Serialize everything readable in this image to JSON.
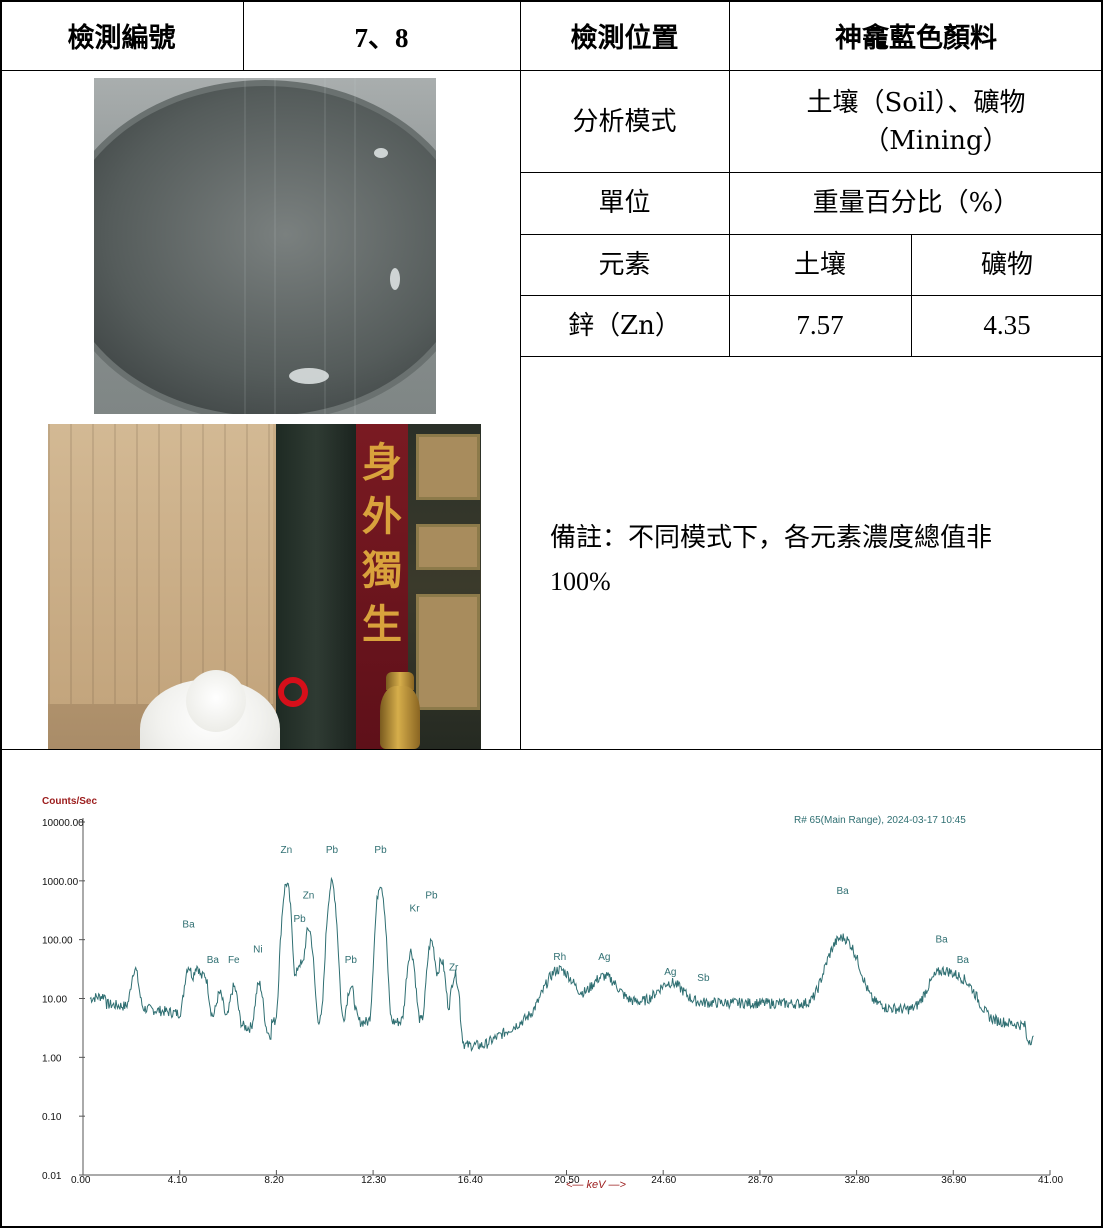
{
  "table": {
    "id_label": "檢測編號",
    "id_value": "7、8",
    "location_label": "檢測位置",
    "location_value": "神龕藍色顏料",
    "mode_label": "分析模式",
    "mode_value_line1": "土壤（Soil）、礦物",
    "mode_value_line2": "（Mining）",
    "unit_label": "單位",
    "unit_value": "重量百分比（%）",
    "element_label": "元素",
    "soil_label": "土壤",
    "mining_label": "礦物",
    "row_element": "鋅（Zn）",
    "row_soil": "7.57",
    "row_mining": "4.35",
    "note_line1": "備註：不同模式下，各元素濃度總值非",
    "note_line2": "100%"
  },
  "photo": {
    "banner_chars": [
      "身",
      "外",
      "獨",
      "生"
    ],
    "marker_color": "#d60f1a"
  },
  "chart_data": {
    "type": "line",
    "ylabel": "Counts/Sec",
    "xlabel": "<— keV —>",
    "annotation": "R# 65(Main Range), 2024-03-17 10:45",
    "y_scale": "log",
    "ylim": [
      0.01,
      10000
    ],
    "xlim": [
      0,
      41
    ],
    "y_ticks": [
      "10000.00",
      "1000.00",
      "100.00",
      "10.00",
      "1.00",
      "0.10",
      "0.01"
    ],
    "x_ticks": [
      "0.00",
      "4.10",
      "8.20",
      "12.30",
      "16.40",
      "20.50",
      "24.60",
      "28.70",
      "32.80",
      "36.90",
      "41.00"
    ],
    "line_color": "#2f6f72",
    "label_color_axis": "#9b1b1b",
    "label_color_peaks": "#2f6f72",
    "peak_labels": [
      {
        "text": "Ba",
        "keV": 4.47,
        "counts": 160
      },
      {
        "text": "Ba",
        "keV": 5.5,
        "counts": 40
      },
      {
        "text": "Fe",
        "keV": 6.4,
        "counts": 40
      },
      {
        "text": "Ni",
        "keV": 7.47,
        "counts": 60
      },
      {
        "text": "Zn",
        "keV": 8.63,
        "counts": 3000
      },
      {
        "text": "Pb",
        "keV": 10.55,
        "counts": 3000
      },
      {
        "text": "Pb",
        "keV": 12.61,
        "counts": 3000
      },
      {
        "text": "Zn",
        "keV": 9.57,
        "counts": 500
      },
      {
        "text": "Pb",
        "keV": 9.18,
        "counts": 200
      },
      {
        "text": "Pb",
        "keV": 11.35,
        "counts": 40
      },
      {
        "text": "Kr",
        "keV": 14.1,
        "counts": 300
      },
      {
        "text": "Pb",
        "keV": 14.77,
        "counts": 500
      },
      {
        "text": "Zr",
        "keV": 15.77,
        "counts": 30
      },
      {
        "text": "Rh",
        "keV": 20.2,
        "counts": 45
      },
      {
        "text": "Ag",
        "keV": 22.1,
        "counts": 45
      },
      {
        "text": "Ag",
        "keV": 24.9,
        "counts": 25
      },
      {
        "text": "Sb",
        "keV": 26.3,
        "counts": 20
      },
      {
        "text": "Ba",
        "keV": 32.2,
        "counts": 600
      },
      {
        "text": "Ba",
        "keV": 36.4,
        "counts": 90
      },
      {
        "text": "Ba",
        "keV": 37.3,
        "counts": 40
      }
    ],
    "peaks": [
      {
        "keV": 2.2,
        "counts": 25
      },
      {
        "keV": 4.47,
        "counts": 30
      },
      {
        "keV": 4.83,
        "counts": 30
      },
      {
        "keV": 5.16,
        "counts": 20
      },
      {
        "keV": 5.8,
        "counts": 8
      },
      {
        "keV": 6.4,
        "counts": 12
      },
      {
        "keV": 7.47,
        "counts": 15
      },
      {
        "keV": 8.63,
        "counts": 900
      },
      {
        "keV": 9.18,
        "counts": 35
      },
      {
        "keV": 9.57,
        "counts": 150
      },
      {
        "keV": 10.55,
        "counts": 900
      },
      {
        "keV": 11.35,
        "counts": 12
      },
      {
        "keV": 12.61,
        "counts": 900
      },
      {
        "keV": 13.9,
        "counts": 60
      },
      {
        "keV": 14.77,
        "counts": 90
      },
      {
        "keV": 15.2,
        "counts": 40
      },
      {
        "keV": 15.77,
        "counts": 22
      },
      {
        "keV": 20.2,
        "counts": 22
      },
      {
        "keV": 22.1,
        "counts": 15
      },
      {
        "keV": 24.9,
        "counts": 10
      },
      {
        "keV": 32.2,
        "counts": 100
      },
      {
        "keV": 36.4,
        "counts": 22
      },
      {
        "keV": 37.3,
        "counts": 14
      }
    ]
  }
}
